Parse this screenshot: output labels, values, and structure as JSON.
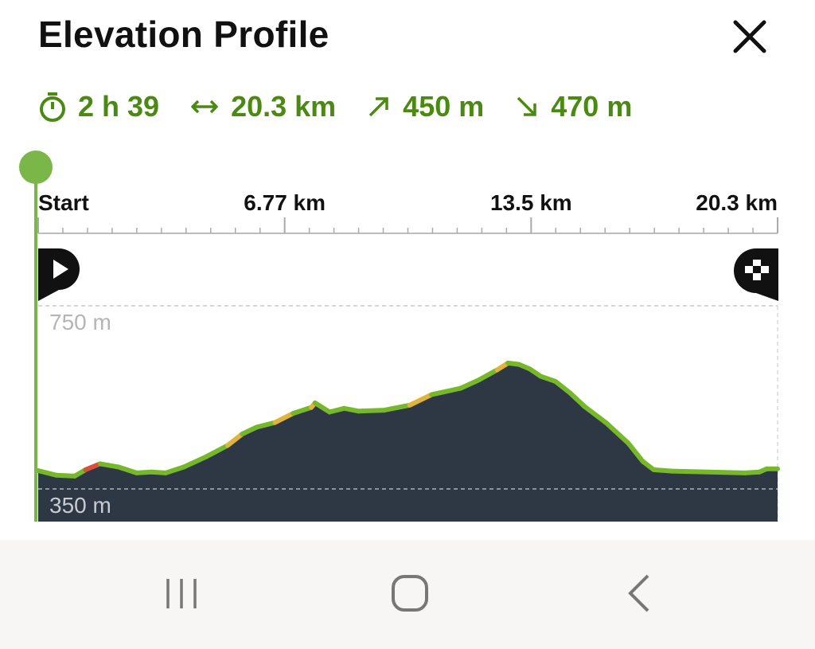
{
  "header": {
    "title": "Elevation Profile"
  },
  "stats": {
    "duration": "2 h 39",
    "distance": "20.3 km",
    "ascent": "450 m",
    "descent": "470 m"
  },
  "icons": {
    "duration": "stopwatch-icon",
    "distance": "left-right-arrow-icon",
    "ascent": "arrow-up-right-icon",
    "descent": "arrow-down-right-icon",
    "close": "close-icon",
    "start_marker": "play-pin-icon",
    "finish_marker": "checkered-flag-pin-icon"
  },
  "colors": {
    "accent": "#4a8a12",
    "slider": "#7ab648",
    "area": "#2e3845",
    "line_green": "#76b82a",
    "line_yellow": "#e0b43a",
    "line_red": "#d8503a"
  },
  "chart_data": {
    "type": "area",
    "x_unit": "km",
    "y_unit": "m",
    "x_tick_labels": [
      "Start",
      "6.77 km",
      "13.5 km",
      "20.3 km"
    ],
    "y_tick_labels": [
      "750 m",
      "350 m"
    ],
    "x_range": [
      0,
      20.3
    ],
    "y_ref_lines": [
      350,
      750
    ],
    "grid": "dashed reference lines",
    "x": [
      0,
      0.5,
      1.0,
      1.3,
      1.7,
      2.2,
      2.7,
      3.1,
      3.5,
      4.0,
      4.6,
      5.2,
      5.6,
      6.0,
      6.5,
      7.0,
      7.5,
      7.6,
      8.0,
      8.4,
      8.8,
      9.5,
      10.2,
      10.8,
      11.6,
      12.1,
      12.6,
      12.9,
      13.2,
      13.5,
      13.8,
      14.2,
      14.6,
      15.0,
      15.6,
      16.2,
      16.6,
      16.9,
      17.4,
      18.4,
      19.4,
      19.8,
      20.0,
      20.3
    ],
    "y": [
      390,
      380,
      378,
      392,
      405,
      398,
      385,
      387,
      385,
      398,
      420,
      445,
      470,
      485,
      495,
      515,
      528,
      538,
      518,
      526,
      520,
      522,
      533,
      556,
      570,
      588,
      610,
      625,
      622,
      612,
      596,
      585,
      560,
      530,
      494,
      450,
      410,
      392,
      389,
      387,
      385,
      387,
      394,
      394
    ],
    "segment_grades": [
      "green",
      "green",
      "green",
      "red",
      "green",
      "green",
      "green",
      "green",
      "green",
      "green",
      "green",
      "yellow",
      "green",
      "green",
      "yellow",
      "green",
      "yellow",
      "green",
      "green",
      "green",
      "green",
      "green",
      "yellow",
      "green",
      "green",
      "green",
      "yellow",
      "green",
      "green",
      "green",
      "green",
      "green",
      "green",
      "green",
      "green",
      "green",
      "green",
      "green",
      "green",
      "green",
      "green",
      "green",
      "green"
    ]
  },
  "navbar": {
    "recent_icon": "recent-apps-icon",
    "home_icon": "home-icon",
    "back_icon": "back-icon"
  }
}
